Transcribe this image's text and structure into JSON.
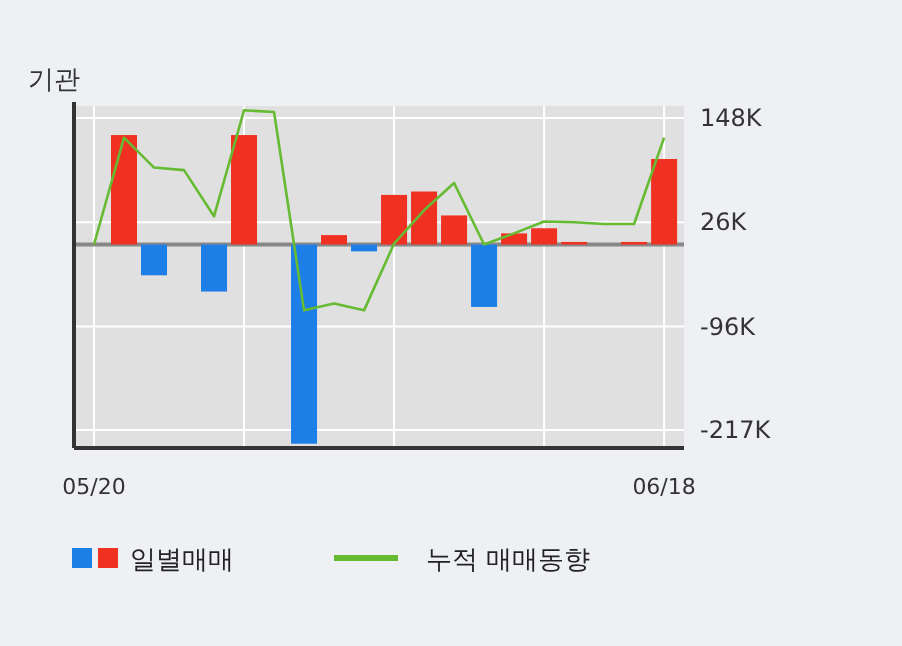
{
  "chart_data": {
    "type": "bar",
    "title": "기관",
    "categories": [
      "05/20",
      null,
      null,
      null,
      null,
      null,
      null,
      null,
      null,
      null,
      null,
      null,
      null,
      null,
      null,
      null,
      null,
      null,
      null,
      "06/18"
    ],
    "series": [
      {
        "name": "일별매매",
        "values": [
          0,
          128,
          -36,
          0,
          -55,
          128,
          0,
          -233,
          11,
          -8,
          58,
          62,
          34,
          -73,
          13,
          19,
          3,
          0,
          3,
          100
        ],
        "colors": [
          "#f03020",
          "#f03020",
          "#1e7ee8",
          "#f03020",
          "#1e7ee8",
          "#f03020",
          "#f03020",
          "#1e7ee8",
          "#f03020",
          "#1e7ee8",
          "#f03020",
          "#f03020",
          "#f03020",
          "#1e7ee8",
          "#f03020",
          "#f03020",
          "#f03020",
          "#f03020",
          "#f03020",
          "#f03020"
        ]
      },
      {
        "name": "누적 매매동향",
        "type": "line",
        "color": "#66bb33",
        "values": [
          0,
          125,
          90,
          87,
          33,
          157,
          155,
          -77,
          -69,
          -77,
          1,
          40,
          72,
          0,
          13,
          27,
          26,
          24,
          24,
          125
        ]
      }
    ],
    "ylim": [
      -238,
      162
    ],
    "yticks": [
      {
        "value": 148,
        "label": "148K"
      },
      {
        "value": 26,
        "label": "26K"
      },
      {
        "value": -96,
        "label": "-96K"
      },
      {
        "value": -217,
        "label": "-217K"
      }
    ],
    "grid": true,
    "legend": "bottom"
  }
}
